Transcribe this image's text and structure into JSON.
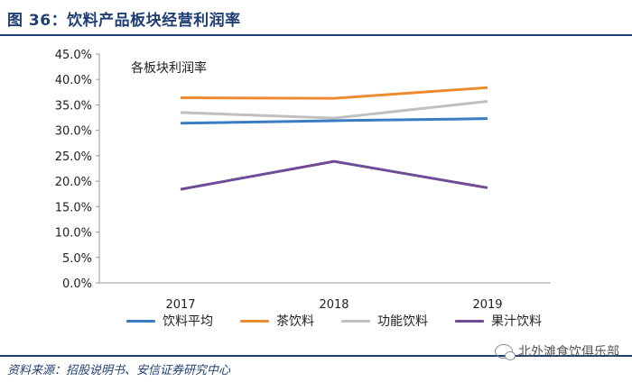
{
  "header": {
    "title": "图 36：饮料产品板块经营利润率"
  },
  "chart_data": {
    "type": "line",
    "title": "各板块利润率",
    "categories": [
      "2017",
      "2018",
      "2019"
    ],
    "series": [
      {
        "name": "饮料平均",
        "color": "#3a7cc4",
        "values": [
          31.4,
          31.9,
          32.3
        ]
      },
      {
        "name": "茶饮料",
        "color": "#ee8a2f",
        "values": [
          36.4,
          36.3,
          38.4
        ]
      },
      {
        "name": "功能饮料",
        "color": "#c0c0c0",
        "values": [
          33.5,
          32.4,
          35.7
        ]
      },
      {
        "name": "果汁饮料",
        "color": "#6e4c96",
        "values": [
          18.4,
          23.9,
          18.7
        ]
      }
    ],
    "ylim": [
      0,
      45
    ],
    "yticks": [
      "0.0%",
      "5.0%",
      "10.0%",
      "15.0%",
      "20.0%",
      "25.0%",
      "30.0%",
      "35.0%",
      "40.0%",
      "45.0%"
    ],
    "xlabel": "",
    "ylabel": "",
    "grid": false,
    "legend": "bottom"
  },
  "footer": {
    "source": "资料来源：招股说明书、安信证券研究中心",
    "watermark": "北外滩食饮俱乐部",
    "watermark_icon": "wechat-icon"
  }
}
